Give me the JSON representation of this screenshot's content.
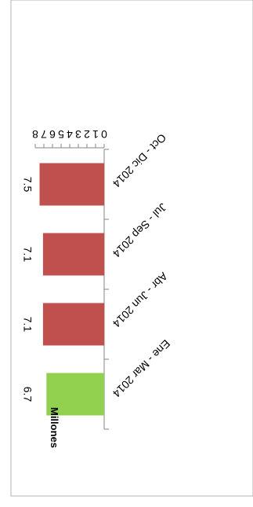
{
  "chart_data": {
    "type": "bar",
    "orientation": "horizontal",
    "rotation_deg": 180,
    "categories": [
      "Ene - Mar 2014",
      "Abr - Jun 2014",
      "Jul - Sep 2014",
      "Oct - Dic 2014"
    ],
    "values": [
      6.7,
      7.1,
      7.1,
      7.5
    ],
    "data_labels": [
      "6.7",
      "7.1",
      "7.1",
      "7.5"
    ],
    "bar_colors": [
      "#92d050",
      "#c0504d",
      "#c0504d",
      "#c0504d"
    ],
    "title": "",
    "xlabel": "Millones",
    "ylabel": "",
    "xlim": [
      0,
      8
    ],
    "x_ticks": [
      "0",
      "1",
      "2",
      "3",
      "4",
      "5",
      "6",
      "7",
      "8"
    ],
    "grid": false,
    "legend": false
  }
}
